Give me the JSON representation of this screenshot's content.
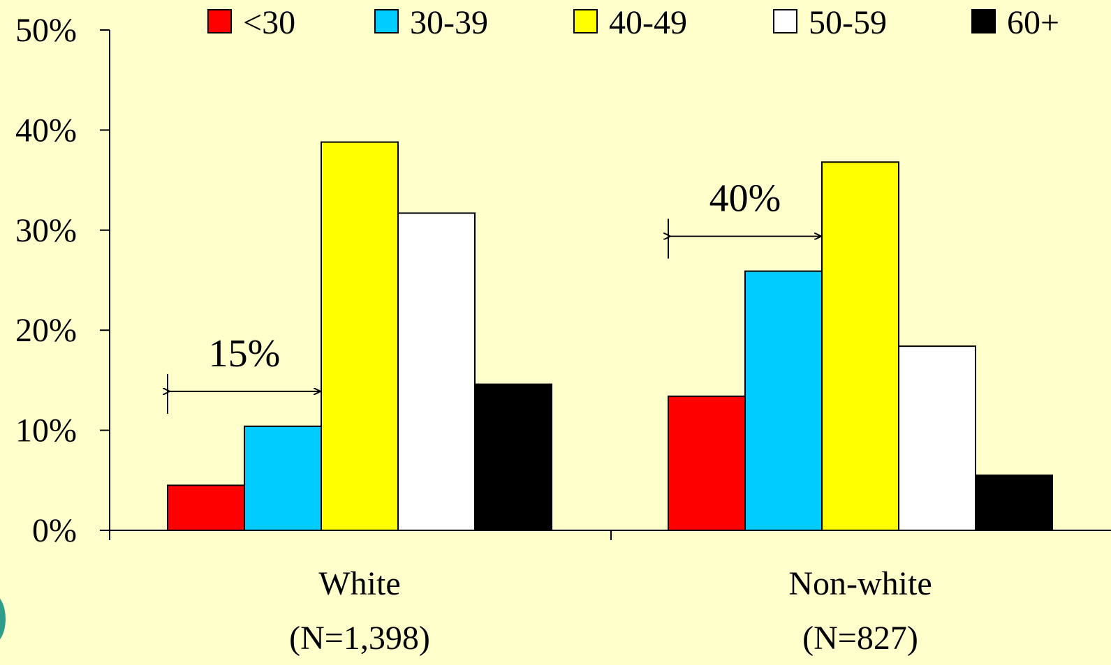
{
  "chart_data": {
    "type": "bar",
    "categories": [
      "White",
      "Non-white"
    ],
    "category_sublabels": [
      "(N=1,398)",
      "(N=827)"
    ],
    "series": [
      {
        "name": "<30",
        "color": "#FF0000",
        "values": [
          4.5,
          13.4
        ]
      },
      {
        "name": "30-39",
        "color": "#00CCFF",
        "values": [
          10.4,
          25.9
        ]
      },
      {
        "name": "40-49",
        "color": "#FFFF00",
        "values": [
          38.8,
          36.8
        ]
      },
      {
        "name": "50-59",
        "color": "#FFFFFF",
        "values": [
          31.7,
          18.4
        ]
      },
      {
        "name": "60+",
        "color": "#000000",
        "values": [
          14.6,
          5.5
        ]
      }
    ],
    "ylim": [
      0,
      50
    ],
    "yticks": [
      "0%",
      "10%",
      "20%",
      "30%",
      "40%",
      "50%"
    ],
    "legend_position": "top",
    "grid": false,
    "annotations": [
      {
        "text": "15%",
        "category": "White",
        "from_series": "<30",
        "to_series": "30-39"
      },
      {
        "text": "40%",
        "category": "Non-white",
        "from_series": "<30",
        "to_series": "30-39"
      }
    ]
  },
  "colors": {
    "background": "#FFFFCC"
  }
}
